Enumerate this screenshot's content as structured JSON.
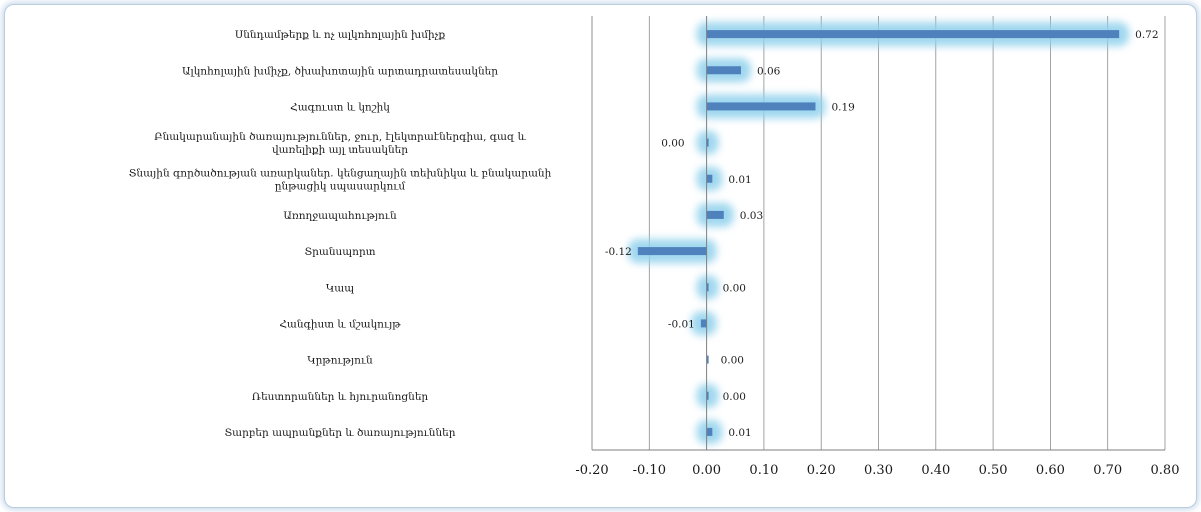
{
  "chart_data": {
    "type": "bar",
    "orientation": "horizontal",
    "categories": [
      "Սննդամթերք և ոչ ալկոհոլային խմիչք",
      "Ալկոհոլային խմիչք, ծխախոտային արտադրատեսակներ",
      "Հագուստ և կոշիկ",
      "Բնակարանային ծառայություններ,   ջուր, էլեկտրաէներգիա, գազ և վառելիքի այլ տեսակներ",
      "Տնային գործածության առարկաներ. կենցաղային տեխնիկա և բնակարանի ընթացիկ սպասարկում",
      "Առողջապահություն",
      "Տրանսպորտ",
      "Կապ",
      "Հանգիստ և մշակույթ",
      "Կրթություն",
      "Ռեստորաններ և հյուրանոցներ",
      "Տարբեր ապրանքներ և ծառայություններ"
    ],
    "values": [
      0.72,
      0.06,
      0.19,
      0.0,
      0.01,
      0.03,
      -0.12,
      0.0,
      -0.01,
      0.0,
      0.0,
      0.01
    ],
    "value_labels": [
      "0.72",
      "0.06",
      "0.19",
      "0.00",
      "0.01",
      "0.03",
      "-0.12",
      "0.00",
      "-0.01",
      "0.00",
      "0.00",
      "0.01"
    ],
    "glow": [
      true,
      true,
      true,
      true,
      true,
      true,
      true,
      true,
      true,
      false,
      true,
      true
    ],
    "xlim": [
      -0.2,
      0.8
    ],
    "xticks": [
      "-0.20",
      "-0.10",
      "0.00",
      "0.10",
      "0.20",
      "0.30",
      "0.40",
      "0.50",
      "0.60",
      "0.70",
      "0.80"
    ],
    "grid": "vertical",
    "title": "",
    "xlabel": "",
    "ylabel": "",
    "colors": {
      "bar": "#4f81bd",
      "glow": "#8fd0ec",
      "grid": "#8c8c8c",
      "axis": "#7f7f7f"
    }
  }
}
